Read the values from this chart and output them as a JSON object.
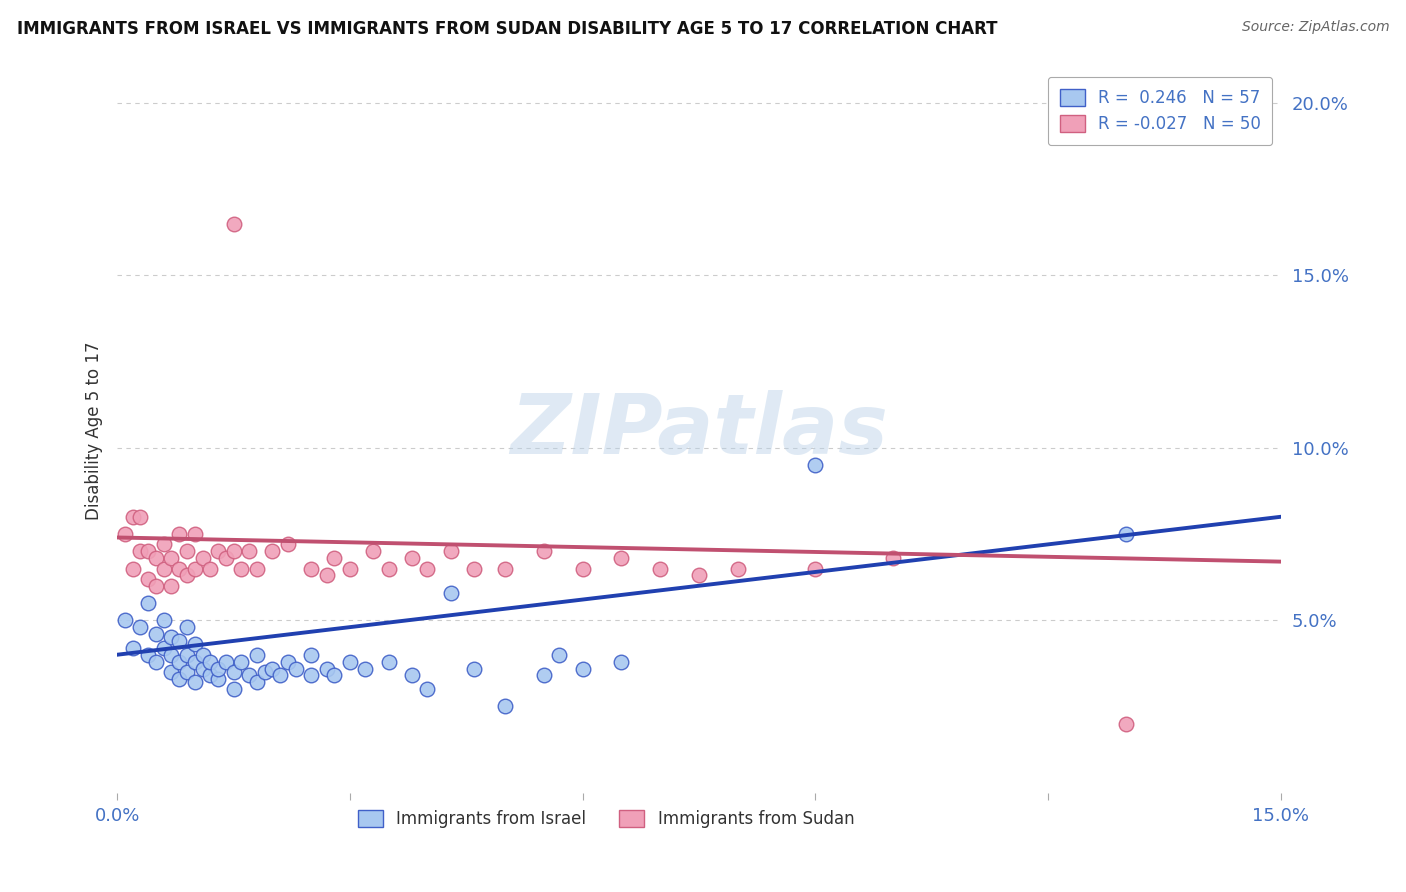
{
  "title": "IMMIGRANTS FROM ISRAEL VS IMMIGRANTS FROM SUDAN DISABILITY AGE 5 TO 17 CORRELATION CHART",
  "source": "Source: ZipAtlas.com",
  "ylabel": "Disability Age 5 to 17",
  "xlim": [
    0.0,
    0.15
  ],
  "ylim": [
    0.0,
    0.21
  ],
  "yticks": [
    0.05,
    0.1,
    0.15,
    0.2
  ],
  "ytick_labels": [
    "5.0%",
    "10.0%",
    "15.0%",
    "20.0%"
  ],
  "xticks": [
    0.0,
    0.03,
    0.06,
    0.09,
    0.12,
    0.15
  ],
  "xtick_labels": [
    "0.0%",
    "",
    "",
    "",
    "",
    "15.0%"
  ],
  "legend_israel_r": "0.246",
  "legend_israel_n": "57",
  "legend_sudan_r": "-0.027",
  "legend_sudan_n": "50",
  "israel_color": "#A8C8F0",
  "sudan_color": "#F0A0B8",
  "israel_edge_color": "#4060C8",
  "sudan_edge_color": "#D06080",
  "israel_line_color": "#2040B0",
  "sudan_line_color": "#C05070",
  "background_color": "#FFFFFF",
  "grid_color": "#CCCCCC",
  "watermark": "ZIPatlas",
  "israel_scatter_x": [
    0.001,
    0.002,
    0.003,
    0.004,
    0.004,
    0.005,
    0.005,
    0.006,
    0.006,
    0.007,
    0.007,
    0.007,
    0.008,
    0.008,
    0.008,
    0.009,
    0.009,
    0.009,
    0.01,
    0.01,
    0.01,
    0.011,
    0.011,
    0.012,
    0.012,
    0.013,
    0.013,
    0.014,
    0.015,
    0.015,
    0.016,
    0.017,
    0.018,
    0.018,
    0.019,
    0.02,
    0.021,
    0.022,
    0.023,
    0.025,
    0.025,
    0.027,
    0.028,
    0.03,
    0.032,
    0.035,
    0.038,
    0.04,
    0.043,
    0.046,
    0.05,
    0.055,
    0.057,
    0.06,
    0.065,
    0.09,
    0.13
  ],
  "israel_scatter_y": [
    0.05,
    0.042,
    0.048,
    0.04,
    0.055,
    0.038,
    0.046,
    0.042,
    0.05,
    0.035,
    0.04,
    0.045,
    0.033,
    0.038,
    0.044,
    0.035,
    0.04,
    0.048,
    0.032,
    0.038,
    0.043,
    0.036,
    0.04,
    0.034,
    0.038,
    0.033,
    0.036,
    0.038,
    0.03,
    0.035,
    0.038,
    0.034,
    0.032,
    0.04,
    0.035,
    0.036,
    0.034,
    0.038,
    0.036,
    0.034,
    0.04,
    0.036,
    0.034,
    0.038,
    0.036,
    0.038,
    0.034,
    0.03,
    0.058,
    0.036,
    0.025,
    0.034,
    0.04,
    0.036,
    0.038,
    0.095,
    0.075
  ],
  "sudan_scatter_x": [
    0.001,
    0.002,
    0.002,
    0.003,
    0.003,
    0.004,
    0.004,
    0.005,
    0.005,
    0.006,
    0.006,
    0.007,
    0.007,
    0.008,
    0.008,
    0.009,
    0.009,
    0.01,
    0.01,
    0.011,
    0.012,
    0.013,
    0.014,
    0.015,
    0.015,
    0.016,
    0.017,
    0.018,
    0.02,
    0.022,
    0.025,
    0.027,
    0.028,
    0.03,
    0.033,
    0.035,
    0.038,
    0.04,
    0.043,
    0.046,
    0.05,
    0.055,
    0.06,
    0.065,
    0.07,
    0.075,
    0.08,
    0.09,
    0.1,
    0.13
  ],
  "sudan_scatter_y": [
    0.075,
    0.065,
    0.08,
    0.07,
    0.08,
    0.062,
    0.07,
    0.06,
    0.068,
    0.065,
    0.072,
    0.06,
    0.068,
    0.065,
    0.075,
    0.063,
    0.07,
    0.065,
    0.075,
    0.068,
    0.065,
    0.07,
    0.068,
    0.165,
    0.07,
    0.065,
    0.07,
    0.065,
    0.07,
    0.072,
    0.065,
    0.063,
    0.068,
    0.065,
    0.07,
    0.065,
    0.068,
    0.065,
    0.07,
    0.065,
    0.065,
    0.07,
    0.065,
    0.068,
    0.065,
    0.063,
    0.065,
    0.065,
    0.068,
    0.02
  ],
  "israel_trend_x": [
    0.0,
    0.15
  ],
  "israel_trend_y": [
    0.04,
    0.08
  ],
  "sudan_trend_x": [
    0.0,
    0.15
  ],
  "sudan_trend_y": [
    0.074,
    0.067
  ]
}
